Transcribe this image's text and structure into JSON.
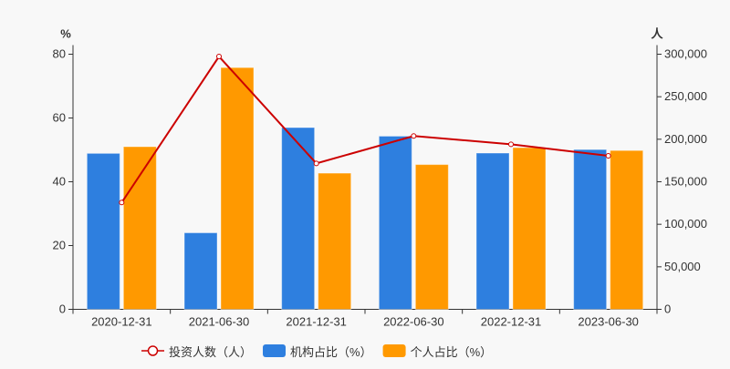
{
  "chart_data": {
    "type": "bar",
    "categories": [
      "2020-12-31",
      "2021-06-30",
      "2021-12-31",
      "2022-06-30",
      "2022-12-31",
      "2023-06-30"
    ],
    "left_axis": {
      "unit_label": "%",
      "ylim": [
        0,
        80
      ],
      "ticks": [
        "0",
        "20",
        "40",
        "60",
        "80"
      ]
    },
    "right_axis": {
      "unit_label": "人",
      "ylim": [
        0,
        300000
      ],
      "ticks": [
        "0",
        "50,000",
        "100,000",
        "150,000",
        "200,000",
        "250,000",
        "300,000"
      ]
    },
    "series": [
      {
        "name": "投资人数（人）",
        "type": "line",
        "axis": "right",
        "color": "#cc0000",
        "values": [
          125600,
          297300,
          171600,
          203800,
          194100,
          180500
        ]
      },
      {
        "name": "机构占比（%）",
        "type": "bar",
        "axis": "left",
        "color": "#2e7fdf",
        "values": [
          48.9,
          24.0,
          57.0,
          54.3,
          49.0,
          50.1
        ]
      },
      {
        "name": "个人占比（%）",
        "type": "bar",
        "axis": "left",
        "color": "#ff9900",
        "values": [
          51.0,
          75.8,
          42.7,
          45.4,
          50.7,
          49.8
        ]
      }
    ],
    "grid": false,
    "legend_position": "bottom"
  }
}
